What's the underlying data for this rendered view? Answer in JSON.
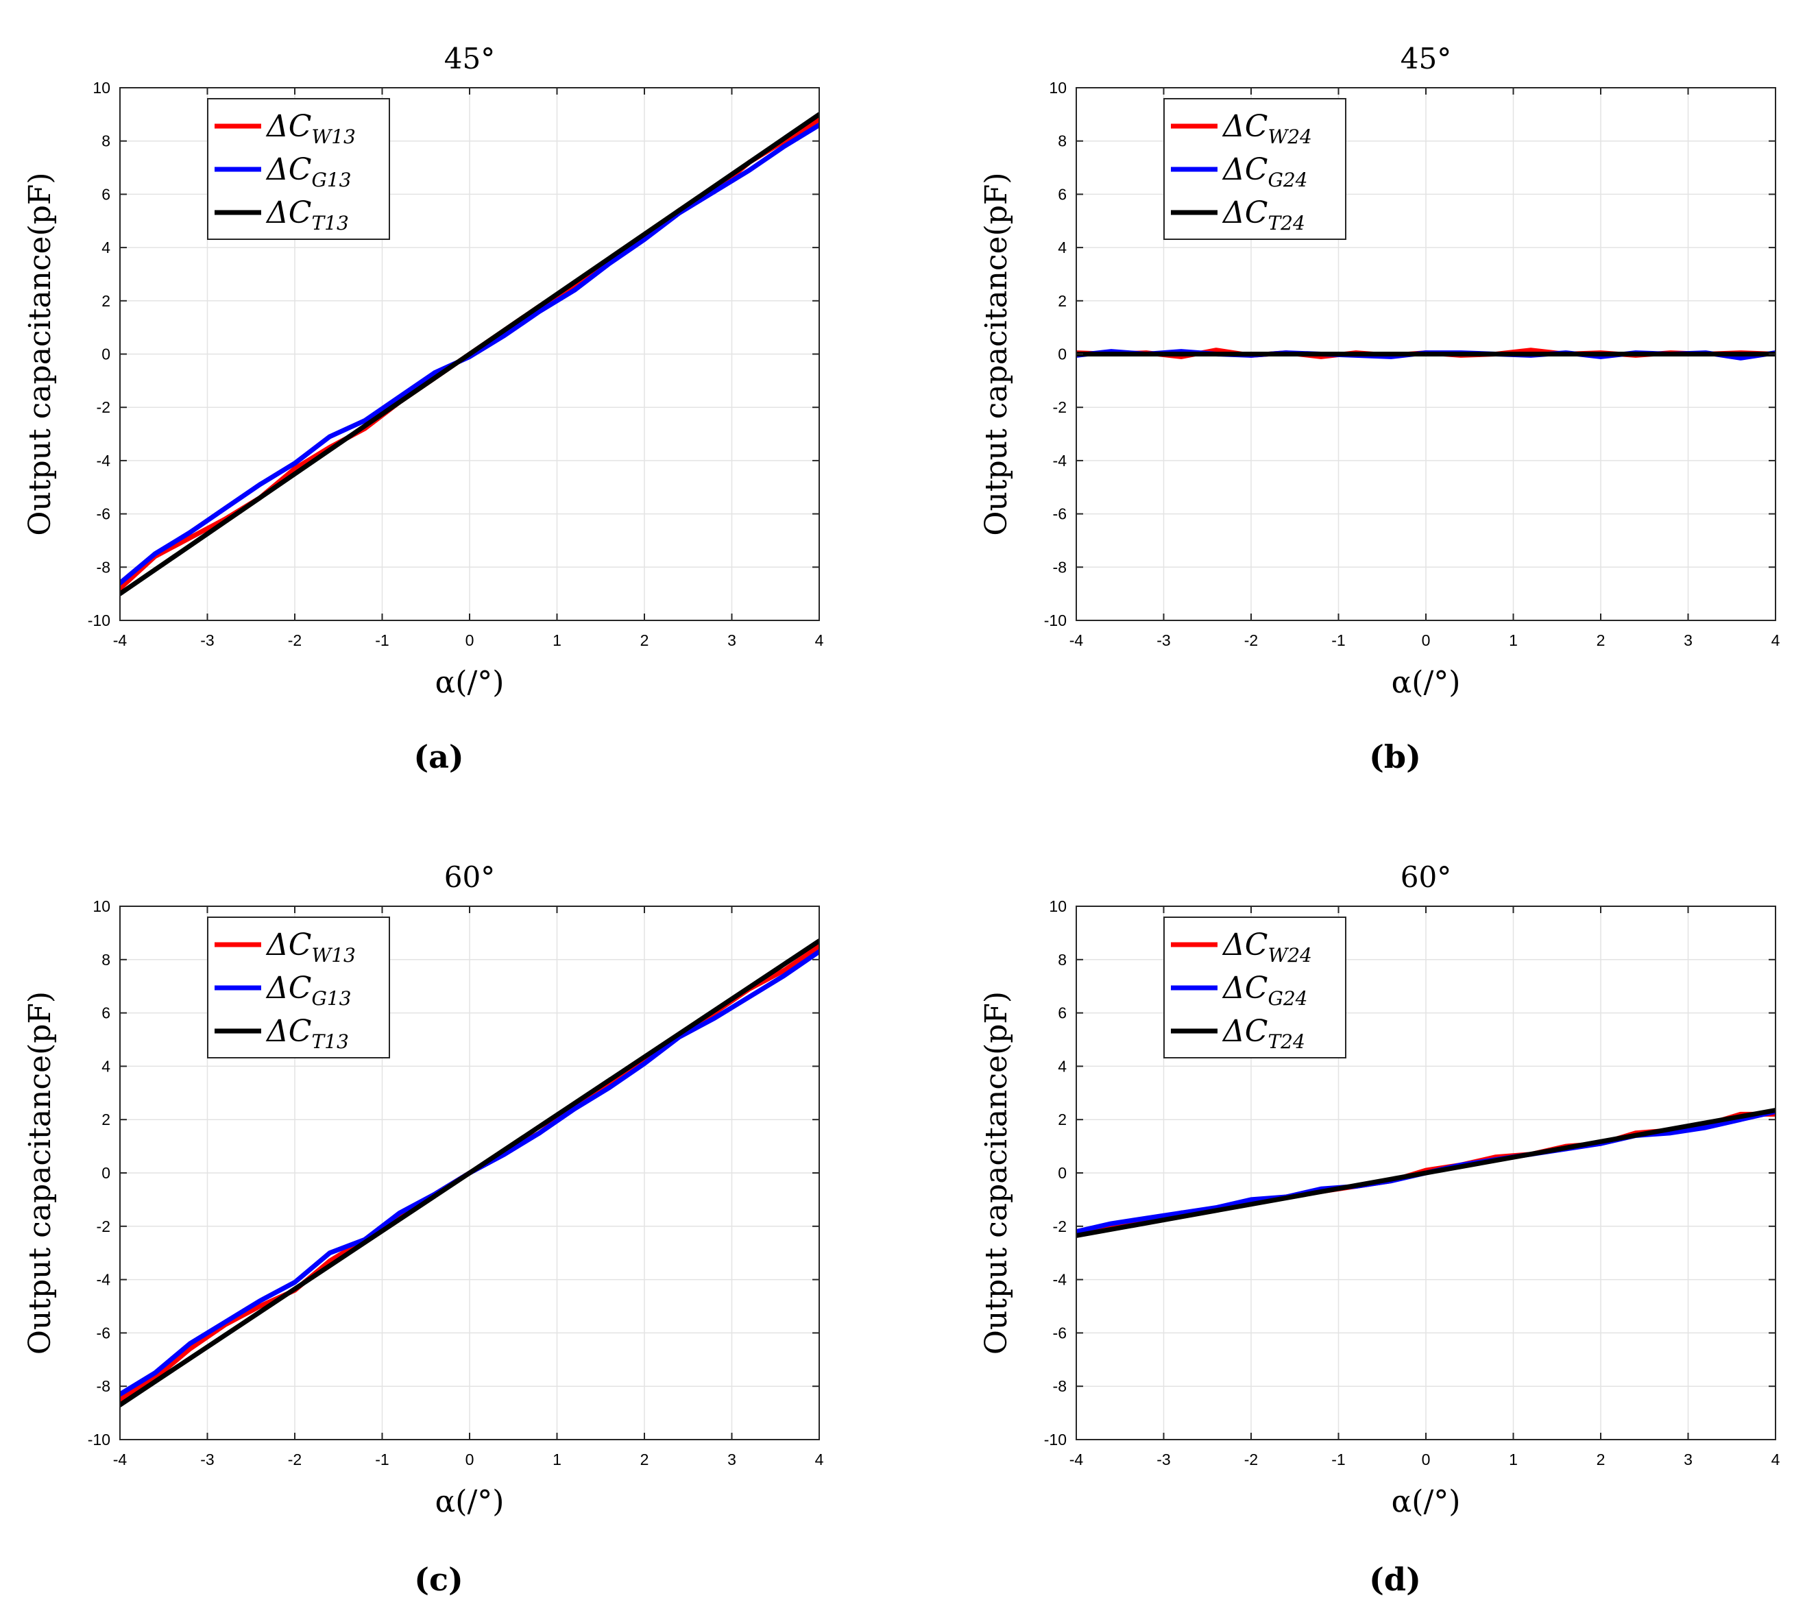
{
  "figure": {
    "panels": [
      "(a)",
      "(b)",
      "(c)",
      "(d)"
    ]
  },
  "chart_data": [
    {
      "type": "line",
      "caption": "(a)",
      "title": "45°",
      "xlabel": "α(/°)",
      "ylabel": "Output capacitance(pF)",
      "xlim": [
        -4,
        4
      ],
      "ylim": [
        -10,
        10
      ],
      "xticks": [
        "-4",
        "-3",
        "-2",
        "-1",
        "0",
        "1",
        "2",
        "3",
        "4"
      ],
      "yticks": [
        "10",
        "8",
        "6",
        "4",
        "2",
        "0",
        "-2",
        "-4",
        "-6",
        "-8",
        "-10"
      ],
      "grid": true,
      "legend_position": "top-left",
      "colors": {
        "W": "#ff0000",
        "G": "#0000ff",
        "T": "#000000"
      },
      "series": [
        {
          "name": "ΔC",
          "sub": "W13",
          "color": "#ff0000",
          "x": [
            -4,
            -3.6,
            -3.2,
            -2.8,
            -2.4,
            -2,
            -1.6,
            -1.2,
            -0.8,
            -0.4,
            0,
            0.4,
            0.8,
            1.2,
            1.6,
            2,
            2.4,
            2.8,
            3.2,
            3.6,
            4
          ],
          "y": [
            -8.8,
            -7.6,
            -6.9,
            -6.2,
            -5.4,
            -4.3,
            -3.5,
            -2.8,
            -1.8,
            -0.9,
            0,
            0.9,
            1.8,
            2.5,
            3.5,
            4.4,
            5.4,
            6.1,
            7.2,
            8.0,
            8.8
          ]
        },
        {
          "name": "ΔC",
          "sub": "G13",
          "color": "#0000ff",
          "x": [
            -4,
            -3.6,
            -3.2,
            -2.8,
            -2.4,
            -2,
            -1.6,
            -1.2,
            -0.8,
            -0.4,
            0,
            0.4,
            0.8,
            1.2,
            1.6,
            2,
            2.4,
            2.8,
            3.2,
            3.6,
            4
          ],
          "y": [
            -8.6,
            -7.5,
            -6.7,
            -5.8,
            -4.9,
            -4.1,
            -3.1,
            -2.5,
            -1.6,
            -0.7,
            -0.1,
            0.7,
            1.6,
            2.4,
            3.4,
            4.3,
            5.3,
            6.1,
            6.9,
            7.8,
            8.6
          ]
        },
        {
          "name": "ΔC",
          "sub": "T13",
          "color": "#000000",
          "x": [
            -4,
            4
          ],
          "y": [
            -9.0,
            9.0
          ]
        }
      ]
    },
    {
      "type": "line",
      "caption": "(b)",
      "title": "45°",
      "xlabel": "α(/°)",
      "ylabel": "Output capacitance(pF)",
      "xlim": [
        -4,
        4
      ],
      "ylim": [
        -10,
        10
      ],
      "xticks": [
        "-4",
        "-3",
        "-2",
        "-1",
        "0",
        "1",
        "2",
        "3",
        "4"
      ],
      "yticks": [
        "10",
        "8",
        "6",
        "4",
        "2",
        "0",
        "-2",
        "-4",
        "-6",
        "-8",
        "-10"
      ],
      "grid": true,
      "legend_position": "top-left",
      "series": [
        {
          "name": "ΔC",
          "sub": "W24",
          "color": "#ff0000",
          "x": [
            -4,
            -3.6,
            -3.2,
            -2.8,
            -2.4,
            -2,
            -1.6,
            -1.2,
            -0.8,
            -0.4,
            0,
            0.4,
            0.8,
            1.2,
            1.6,
            2,
            2.4,
            2.8,
            3.2,
            3.6,
            4
          ],
          "y": [
            0.05,
            0.0,
            0.05,
            -0.1,
            0.15,
            -0.05,
            0.05,
            -0.1,
            0.05,
            -0.05,
            0.05,
            -0.05,
            0.0,
            0.15,
            0.0,
            0.05,
            -0.05,
            0.05,
            0.0,
            0.05,
            0.0
          ]
        },
        {
          "name": "ΔC",
          "sub": "G24",
          "color": "#0000ff",
          "x": [
            -4,
            -3.6,
            -3.2,
            -2.8,
            -2.4,
            -2,
            -1.6,
            -1.2,
            -0.8,
            -0.4,
            0,
            0.4,
            0.8,
            1.2,
            1.6,
            2,
            2.4,
            2.8,
            3.2,
            3.6,
            4
          ],
          "y": [
            -0.05,
            0.1,
            0.0,
            0.1,
            0.0,
            -0.05,
            0.05,
            0.0,
            -0.05,
            -0.1,
            0.05,
            0.05,
            0.0,
            -0.05,
            0.05,
            -0.1,
            0.05,
            0.0,
            0.05,
            -0.15,
            0.05
          ]
        },
        {
          "name": "ΔC",
          "sub": "T24",
          "color": "#000000",
          "x": [
            -4,
            4
          ],
          "y": [
            0,
            0
          ]
        }
      ]
    },
    {
      "type": "line",
      "caption": "(c)",
      "title": "60°",
      "xlabel": "α(/°)",
      "ylabel": "Output capacitance(pF)",
      "xlim": [
        -4,
        4
      ],
      "ylim": [
        -10,
        10
      ],
      "xticks": [
        "-4",
        "-3",
        "-2",
        "-1",
        "0",
        "1",
        "2",
        "3",
        "4"
      ],
      "yticks": [
        "10",
        "8",
        "6",
        "4",
        "2",
        "0",
        "-2",
        "-4",
        "-6",
        "-8",
        "-10"
      ],
      "grid": true,
      "legend_position": "top-left",
      "series": [
        {
          "name": "ΔC",
          "sub": "W13",
          "color": "#ff0000",
          "x": [
            -4,
            -3.6,
            -3.2,
            -2.8,
            -2.4,
            -2,
            -1.6,
            -1.2,
            -0.8,
            -0.4,
            0,
            0.4,
            0.8,
            1.2,
            1.6,
            2,
            2.4,
            2.8,
            3.2,
            3.6,
            4
          ],
          "y": [
            -8.5,
            -7.7,
            -6.6,
            -5.7,
            -5.0,
            -4.4,
            -3.3,
            -2.5,
            -1.7,
            -0.8,
            0,
            0.8,
            1.5,
            2.5,
            3.3,
            4.3,
            5.2,
            6.0,
            6.9,
            7.6,
            8.5
          ]
        },
        {
          "name": "ΔC",
          "sub": "G13",
          "color": "#0000ff",
          "x": [
            -4,
            -3.6,
            -3.2,
            -2.8,
            -2.4,
            -2,
            -1.6,
            -1.2,
            -0.8,
            -0.4,
            0,
            0.4,
            0.8,
            1.2,
            1.6,
            2,
            2.4,
            2.8,
            3.2,
            3.6,
            4
          ],
          "y": [
            -8.3,
            -7.5,
            -6.4,
            -5.6,
            -4.8,
            -4.1,
            -3.0,
            -2.5,
            -1.5,
            -0.8,
            0,
            0.7,
            1.5,
            2.4,
            3.2,
            4.1,
            5.1,
            5.8,
            6.6,
            7.4,
            8.3
          ]
        },
        {
          "name": "ΔC",
          "sub": "T13",
          "color": "#000000",
          "x": [
            -4,
            4
          ],
          "y": [
            -8.7,
            8.7
          ]
        }
      ]
    },
    {
      "type": "line",
      "caption": "(d)",
      "title": "60°",
      "xlabel": "α(/°)",
      "ylabel": "Output capacitance(pF)",
      "xlim": [
        -4,
        4
      ],
      "ylim": [
        -10,
        10
      ],
      "xticks": [
        "-4",
        "-3",
        "-2",
        "-1",
        "0",
        "1",
        "2",
        "3",
        "4"
      ],
      "yticks": [
        "10",
        "8",
        "6",
        "4",
        "2",
        "0",
        "-2",
        "-4",
        "-6",
        "-8",
        "-10"
      ],
      "grid": true,
      "legend_position": "top-left",
      "series": [
        {
          "name": "ΔC",
          "sub": "W24",
          "color": "#ff0000",
          "x": [
            -4,
            -3.6,
            -3.2,
            -2.8,
            -2.4,
            -2,
            -1.6,
            -1.2,
            -0.8,
            -0.4,
            0,
            0.4,
            0.8,
            1.2,
            1.6,
            2,
            2.4,
            2.8,
            3.2,
            3.6,
            4
          ],
          "y": [
            -2.3,
            -2.0,
            -1.8,
            -1.5,
            -1.4,
            -1.1,
            -0.9,
            -0.7,
            -0.5,
            -0.3,
            0.1,
            0.3,
            0.6,
            0.7,
            1.0,
            1.1,
            1.5,
            1.6,
            1.8,
            2.2,
            2.2
          ]
        },
        {
          "name": "ΔC",
          "sub": "G24",
          "color": "#0000ff",
          "x": [
            -4,
            -3.6,
            -3.2,
            -2.8,
            -2.4,
            -2,
            -1.6,
            -1.2,
            -0.8,
            -0.4,
            0,
            0.4,
            0.8,
            1.2,
            1.6,
            2,
            2.4,
            2.8,
            3.2,
            3.6,
            4
          ],
          "y": [
            -2.2,
            -1.9,
            -1.7,
            -1.5,
            -1.3,
            -1.0,
            -0.9,
            -0.6,
            -0.5,
            -0.3,
            0.0,
            0.3,
            0.5,
            0.7,
            0.9,
            1.1,
            1.4,
            1.5,
            1.7,
            2.0,
            2.3
          ]
        },
        {
          "name": "ΔC",
          "sub": "T24",
          "color": "#000000",
          "x": [
            -4,
            4
          ],
          "y": [
            -2.35,
            2.35
          ]
        }
      ]
    }
  ]
}
